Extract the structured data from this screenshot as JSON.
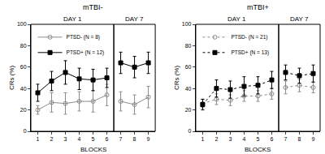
{
  "chart_data": [
    {
      "type": "line",
      "title": "mTBI-",
      "x_label": "BLOCKS",
      "y_label": "CRs (%)",
      "ylim": [
        0,
        100
      ],
      "yticks": [
        0,
        20,
        40,
        60,
        80,
        100
      ],
      "x": [
        1,
        2,
        3,
        4,
        5,
        6,
        7,
        8,
        9
      ],
      "panels": [
        {
          "title": "DAY 1",
          "xlim": [
            0.5,
            6.5
          ],
          "xticks": [
            1,
            2,
            3,
            4,
            5,
            6
          ]
        },
        {
          "title": "DAY 7",
          "xlim": [
            6.5,
            9.5
          ],
          "xticks": [
            7,
            8,
            9
          ]
        }
      ],
      "legend": "upper left",
      "series": [
        {
          "name": "PTSD- (N = 8)",
          "color": "#8c8c8c",
          "marker": "circle-open",
          "line_style": "solid",
          "values": [
            20,
            27,
            26,
            28,
            28,
            34,
            28,
            25,
            32
          ],
          "errors": [
            4,
            9,
            10,
            9,
            10,
            10,
            9,
            9,
            10
          ]
        },
        {
          "name": "PTSD+ (N = 12)",
          "color": "#000000",
          "marker": "square",
          "line_style": "solid",
          "values": [
            36,
            47,
            55,
            49,
            48,
            50,
            64,
            60,
            64
          ],
          "errors": [
            8,
            9,
            11,
            10,
            10,
            9,
            10,
            10,
            10
          ]
        }
      ]
    },
    {
      "type": "line",
      "title": "mTBI+",
      "x_label": "BLOCKS",
      "y_label": "CRs (%)",
      "ylim": [
        0,
        100
      ],
      "yticks": [
        0,
        20,
        40,
        60,
        80,
        100
      ],
      "x": [
        1,
        2,
        3,
        4,
        5,
        6,
        7,
        8,
        9
      ],
      "panels": [
        {
          "title": "DAY 1",
          "xlim": [
            0.5,
            6.5
          ],
          "xticks": [
            1,
            2,
            3,
            4,
            5,
            6
          ]
        },
        {
          "title": "DAY 7",
          "xlim": [
            6.5,
            9.5
          ],
          "xticks": [
            7,
            8,
            9
          ]
        }
      ],
      "legend": "upper left",
      "series": [
        {
          "name": "PTSD- (N = 21)",
          "color": "#8c8c8c",
          "marker": "circle-open",
          "line_style": "dot",
          "values": [
            26,
            30,
            29,
            33,
            33,
            35,
            41,
            43,
            41
          ],
          "errors": [
            4,
            5,
            5,
            5,
            5,
            5,
            6,
            6,
            5
          ]
        },
        {
          "name": "PTSD+ (N = 13)",
          "color": "#000000",
          "marker": "square",
          "line_style": "dot",
          "values": [
            25,
            40,
            39,
            42,
            43,
            48,
            55,
            52,
            54
          ],
          "errors": [
            5,
            8,
            8,
            9,
            8,
            8,
            7,
            7,
            8
          ]
        }
      ]
    }
  ]
}
